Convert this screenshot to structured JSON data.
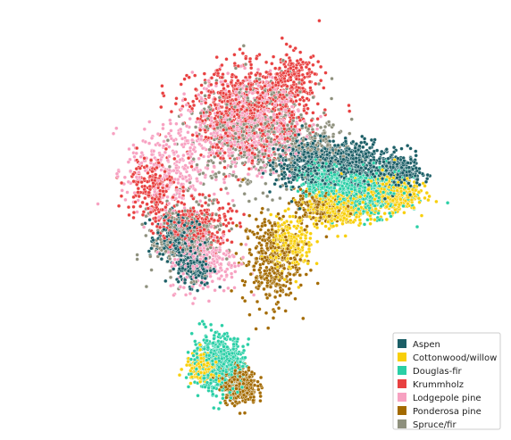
{
  "chart_data": {
    "type": "scatter",
    "title": "",
    "xlabel": "",
    "ylabel": "",
    "axes_visible": false,
    "grid": false,
    "legend_placement": "lower-right",
    "series": [
      {
        "name": "Aspen",
        "color": "#1b5e66",
        "clusters": [
          {
            "cx": 0.3,
            "cy": 0.38,
            "sx": 0.1,
            "sy": 0.05,
            "n": 600
          },
          {
            "cx": 0.55,
            "cy": 0.38,
            "sx": 0.07,
            "sy": 0.05,
            "n": 400
          },
          {
            "cx": 0.8,
            "cy": 0.34,
            "sx": 0.06,
            "sy": 0.04,
            "n": 350
          },
          {
            "cx": -0.45,
            "cy": 0.05,
            "sx": 0.06,
            "sy": 0.05,
            "n": 250
          },
          {
            "cx": -0.35,
            "cy": -0.08,
            "sx": 0.05,
            "sy": 0.04,
            "n": 200
          }
        ]
      },
      {
        "name": "Cottonwood/willow",
        "color": "#f8cf0a",
        "clusters": [
          {
            "cx": 0.75,
            "cy": 0.25,
            "sx": 0.08,
            "sy": 0.04,
            "n": 500
          },
          {
            "cx": 0.45,
            "cy": 0.18,
            "sx": 0.08,
            "sy": 0.04,
            "n": 350
          },
          {
            "cx": 0.2,
            "cy": 0.02,
            "sx": 0.06,
            "sy": 0.06,
            "n": 200
          },
          {
            "cx": -0.3,
            "cy": -0.52,
            "sx": 0.05,
            "sy": 0.03,
            "n": 200
          }
        ]
      },
      {
        "name": "Douglas-fir",
        "color": "#2acfa6",
        "clusters": [
          {
            "cx": 0.65,
            "cy": 0.25,
            "sx": 0.1,
            "sy": 0.05,
            "n": 500
          },
          {
            "cx": 0.4,
            "cy": 0.3,
            "sx": 0.08,
            "sy": 0.04,
            "n": 300
          },
          {
            "cx": -0.22,
            "cy": -0.5,
            "sx": 0.07,
            "sy": 0.06,
            "n": 650
          }
        ]
      },
      {
        "name": "Krummholz",
        "color": "#e84040",
        "clusters": [
          {
            "cx": -0.05,
            "cy": 0.6,
            "sx": 0.16,
            "sy": 0.1,
            "n": 800
          },
          {
            "cx": -0.6,
            "cy": 0.28,
            "sx": 0.07,
            "sy": 0.07,
            "n": 200
          },
          {
            "cx": -0.35,
            "cy": 0.1,
            "sx": 0.1,
            "sy": 0.06,
            "n": 300
          },
          {
            "cx": 0.2,
            "cy": 0.75,
            "sx": 0.08,
            "sy": 0.06,
            "n": 200
          }
        ]
      },
      {
        "name": "Lodgepole pine",
        "color": "#f7a1c1",
        "clusters": [
          {
            "cx": -0.05,
            "cy": 0.55,
            "sx": 0.15,
            "sy": 0.1,
            "n": 600
          },
          {
            "cx": -0.5,
            "cy": 0.35,
            "sx": 0.12,
            "sy": 0.1,
            "n": 300
          },
          {
            "cx": -0.3,
            "cy": -0.05,
            "sx": 0.1,
            "sy": 0.07,
            "n": 250
          }
        ]
      },
      {
        "name": "Ponderosa pine",
        "color": "#a36a00",
        "clusters": [
          {
            "cx": 0.08,
            "cy": -0.05,
            "sx": 0.08,
            "sy": 0.1,
            "n": 350
          },
          {
            "cx": -0.1,
            "cy": -0.6,
            "sx": 0.05,
            "sy": 0.04,
            "n": 350
          },
          {
            "cx": 0.35,
            "cy": 0.18,
            "sx": 0.07,
            "sy": 0.04,
            "n": 150
          }
        ]
      },
      {
        "name": "Spruce/fir",
        "color": "#8e907d",
        "clusters": [
          {
            "cx": 0.0,
            "cy": 0.5,
            "sx": 0.18,
            "sy": 0.12,
            "n": 500
          },
          {
            "cx": -0.4,
            "cy": 0.05,
            "sx": 0.1,
            "sy": 0.08,
            "n": 300
          },
          {
            "cx": 0.35,
            "cy": 0.45,
            "sx": 0.08,
            "sy": 0.05,
            "n": 150
          }
        ]
      }
    ],
    "xlim": [
      -1.3,
      1.3
    ],
    "ylim": [
      -0.75,
      1.0
    ]
  }
}
